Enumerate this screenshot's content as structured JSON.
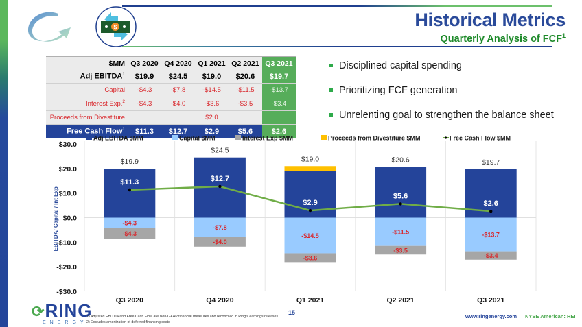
{
  "header": {
    "title": "Historical Metrics",
    "subtitle": "Quarterly Analysis of FCF",
    "subtitle_sup": "1"
  },
  "table": {
    "columns": [
      "$MM",
      "Q3 2020",
      "Q4 2020",
      "Q1 2021",
      "Q2 2021",
      "Q3 2021"
    ],
    "highlight_column": "Q3 2021",
    "rows": [
      {
        "label": "Adj EBITDA",
        "sup": "1",
        "values": [
          "$19.9",
          "$24.5",
          "$19.0",
          "$20.6",
          "$19.7"
        ]
      },
      {
        "label": "Capital",
        "sup": "",
        "values": [
          "-$4.3",
          "-$7.8",
          "-$14.5",
          "-$11.5",
          "-$13.7"
        ]
      },
      {
        "label": "Interest Exp.",
        "sup": "2",
        "values": [
          "-$4.3",
          "-$4.0",
          "-$3.6",
          "-$3.5",
          "-$3.4"
        ]
      },
      {
        "label": "Proceeds from Divestiture",
        "sup": "",
        "values": [
          "",
          "",
          "$2.0",
          "",
          ""
        ]
      },
      {
        "label": "Free Cash Flow",
        "sup": "1",
        "values": [
          "$11.3",
          "$12.7",
          "$2.9",
          "$5.6",
          "$2.6"
        ]
      }
    ]
  },
  "bullets": [
    "Disciplined capital spending",
    "Prioritizing FCF generation",
    "Unrelenting goal to strengthen the balance sheet"
  ],
  "chart_data": {
    "type": "bar",
    "stacked": true,
    "categories": [
      "Q3 2020",
      "Q4 2020",
      "Q1 2021",
      "Q2 2021",
      "Q3 2021"
    ],
    "series": [
      {
        "name": "Adj EBITDA $MM",
        "kind": "bar",
        "color": "#24449a",
        "values": [
          19.9,
          24.5,
          19.0,
          20.6,
          19.7
        ],
        "labels": [
          "$19.9",
          "$24.5",
          "$19.0",
          "$20.6",
          "$19.7"
        ]
      },
      {
        "name": "Capital $MM",
        "kind": "bar",
        "color": "#99cbff",
        "values": [
          -4.3,
          -7.8,
          -14.5,
          -11.5,
          -13.7
        ],
        "labels": [
          "-$4.3",
          "-$7.8",
          "-$14.5",
          "-$11.5",
          "-$13.7"
        ]
      },
      {
        "name": "Interest Exp $MM",
        "kind": "bar",
        "color": "#a6a6a6",
        "values": [
          -4.3,
          -4.0,
          -3.6,
          -3.5,
          -3.4
        ],
        "labels": [
          "-$4.3",
          "-$4.0",
          "-$3.6",
          "-$3.5",
          "-$3.4"
        ]
      },
      {
        "name": "Proceeds from Divestiture $MM",
        "kind": "bar",
        "color": "#ffc000",
        "values": [
          0,
          0,
          2.0,
          0,
          0
        ],
        "labels": [
          "",
          "",
          "",
          "",
          ""
        ]
      },
      {
        "name": "Free Cash Flow $MM",
        "kind": "line",
        "color": "#70ad47",
        "values": [
          11.3,
          12.7,
          2.9,
          5.6,
          2.6
        ],
        "labels": [
          "$11.3",
          "$12.7",
          "$2.9",
          "$5.6",
          "$2.6"
        ]
      }
    ],
    "ylabel": "EBITDA/ Capital / Int Exp",
    "xlabel": "",
    "ylim": [
      -30,
      30
    ],
    "yticks": [
      30,
      20,
      10,
      0,
      -10,
      -20,
      -30
    ],
    "ytick_labels": [
      "$30.0",
      "$20.0",
      "$10.0",
      "$0.0",
      "-$10.0",
      "-$20.0",
      "-$30.0"
    ],
    "grid": "vertical category separators and zero line",
    "legend": "top"
  },
  "footer": {
    "brand": "RING",
    "brand_sub": "ENERGY",
    "page": "15",
    "footnotes": [
      "1)    Adjusted EBITDA and Free Cash Flow are Non-GAAP financial measures and reconciled in Ring's earnings releases",
      "2)    Excludes amortization of deferred financing costs"
    ],
    "website": "www.ringenergy.com",
    "ticker": "NYSE American: REI"
  }
}
